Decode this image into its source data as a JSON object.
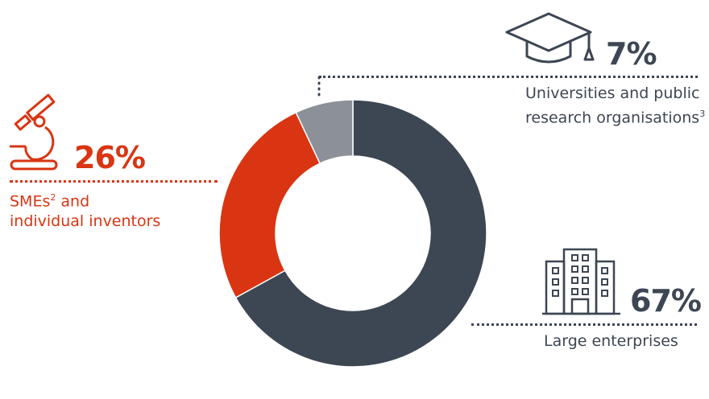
{
  "chart_data": {
    "type": "pie",
    "donut": true,
    "slices": [
      {
        "label": "Large enterprises",
        "value": 67,
        "display": "67%",
        "color": "#3d4653",
        "icon": "office-building-icon"
      },
      {
        "label": "SMEs and individual inventors",
        "value": 26,
        "display": "26%",
        "color": "#d93512",
        "icon": "microscope-icon"
      },
      {
        "label": "Universities and public research organisations",
        "value": 7,
        "display": "7%",
        "color": "#8b9099",
        "icon": "graduation-cap-icon"
      }
    ]
  },
  "labels": {
    "sme_line1": "SMEs",
    "sme_sup": "2",
    "sme_line1_rest": " and",
    "sme_line2": "individual inventors",
    "uni_line1": "Universities and public",
    "uni_line2": "research organisations",
    "uni_sup": "3",
    "large": "Large enterprises"
  }
}
